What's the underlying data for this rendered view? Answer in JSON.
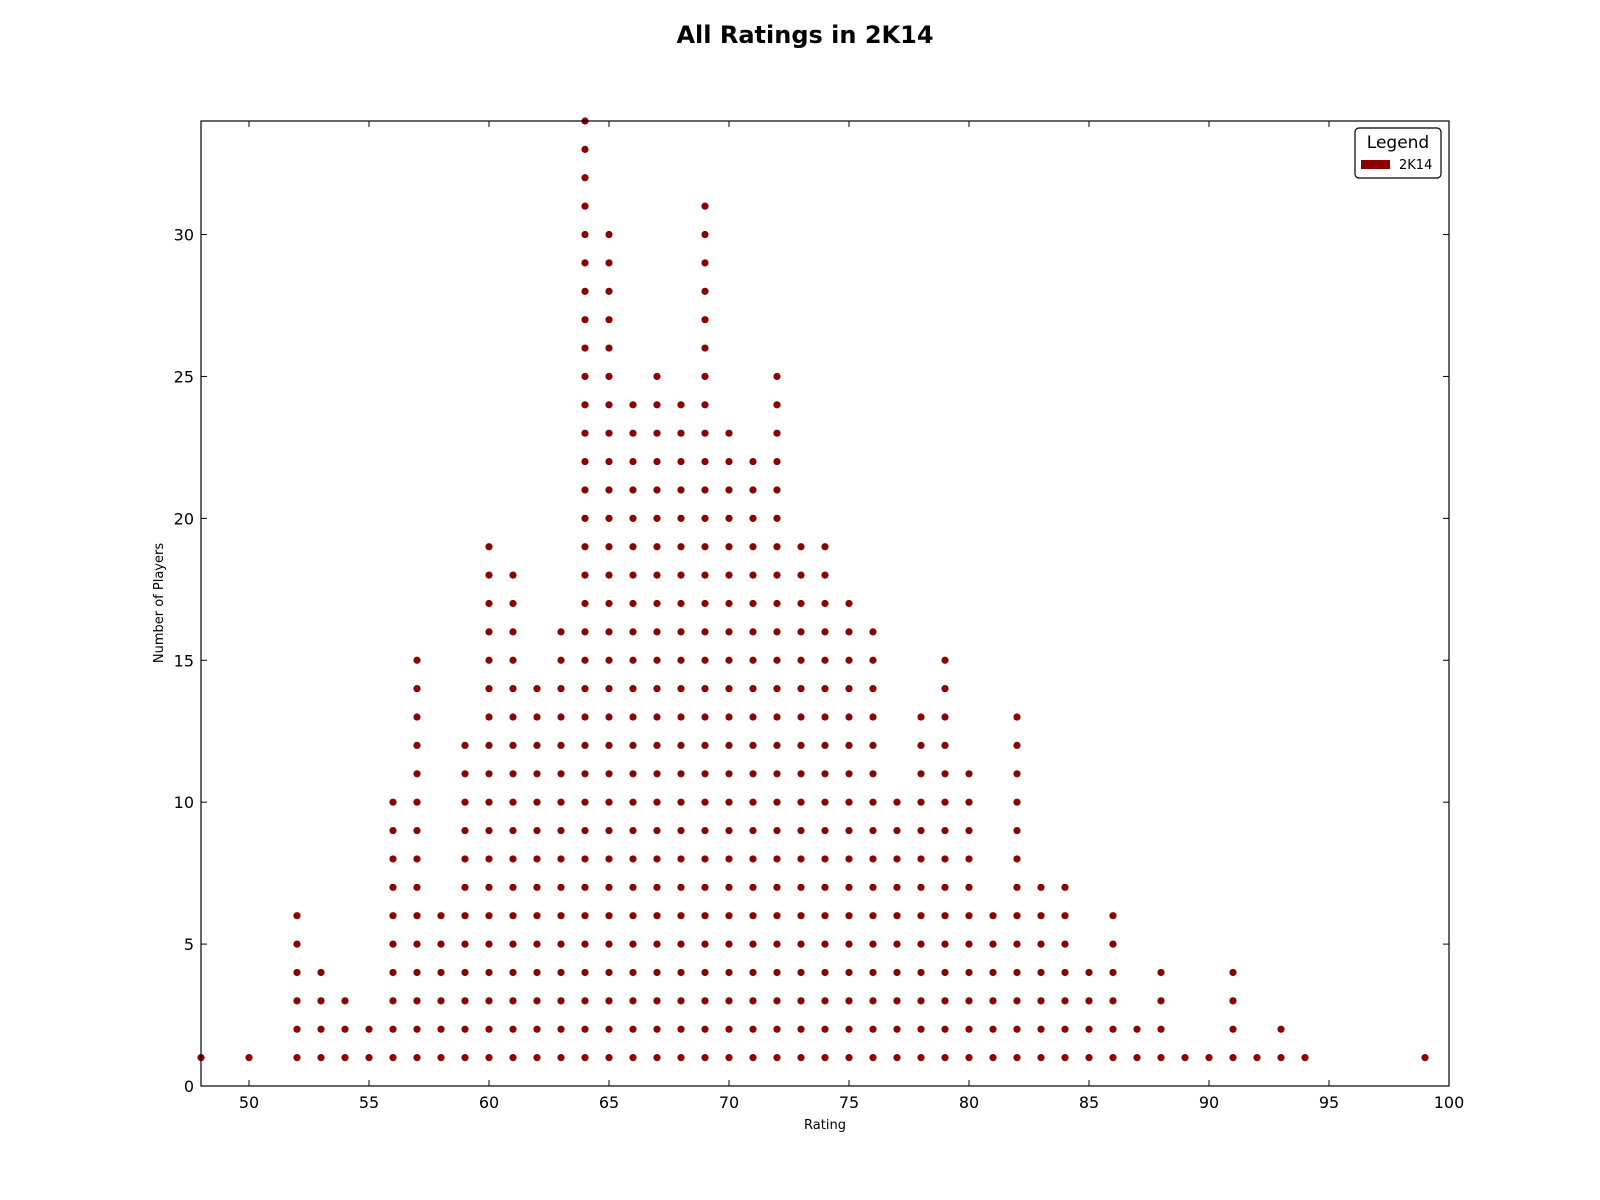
{
  "chart_data": {
    "type": "scatter",
    "title": "All Ratings in 2K14",
    "xlabel": "Rating",
    "ylabel": "Number of Players",
    "xlim": [
      48,
      100
    ],
    "ylim": [
      0,
      34
    ],
    "xticks": [
      50,
      55,
      60,
      65,
      70,
      75,
      80,
      85,
      90,
      95,
      100
    ],
    "yticks": [
      0,
      5,
      10,
      15,
      20,
      25,
      30
    ],
    "grid": false,
    "legend": {
      "title": "Legend",
      "position": "top-right",
      "entries": [
        {
          "label": "2K14",
          "color": "#8b0000"
        }
      ]
    },
    "series": [
      {
        "name": "2K14",
        "color": "#8b0000",
        "marker": "dot",
        "description": "Each rating value has one dot per player, stacked from 1 up to the player count at that rating.",
        "x": [
          48,
          50,
          52,
          53,
          54,
          55,
          56,
          57,
          58,
          59,
          60,
          61,
          62,
          63,
          64,
          65,
          66,
          67,
          68,
          69,
          70,
          71,
          72,
          73,
          74,
          75,
          76,
          77,
          78,
          79,
          80,
          81,
          82,
          83,
          84,
          85,
          86,
          87,
          88,
          89,
          90,
          91,
          92,
          93,
          94,
          99
        ],
        "counts": [
          1,
          1,
          6,
          4,
          3,
          2,
          10,
          15,
          6,
          12,
          19,
          18,
          14,
          16,
          34,
          30,
          24,
          25,
          24,
          31,
          23,
          22,
          25,
          19,
          19,
          17,
          16,
          10,
          13,
          15,
          11,
          6,
          13,
          7,
          7,
          4,
          6,
          2,
          4,
          1,
          1,
          4,
          1,
          2,
          1,
          1
        ]
      }
    ]
  }
}
